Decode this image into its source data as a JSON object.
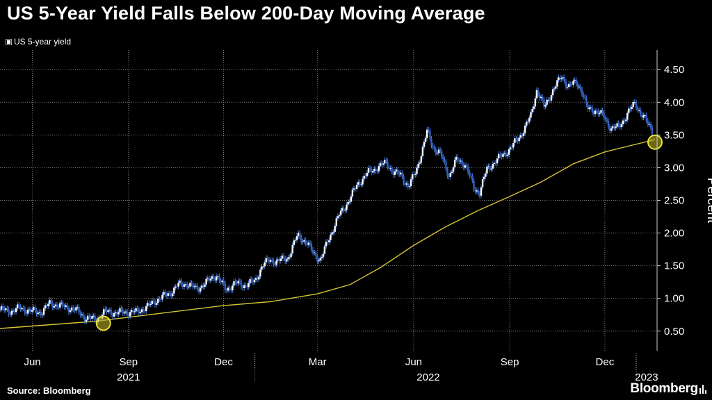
{
  "title": "US 5-Year Yield Falls Below 200-Day Moving Average",
  "legend_label": "US 5-year yield",
  "source": "Source: Bloomberg",
  "brand": "Bloomberg",
  "colors": {
    "background": "#000000",
    "yield_series": "#ffffff",
    "moving_average": "#d4c534",
    "highlight": "#e8e03a",
    "grid": "#7a7a7a"
  },
  "chart_data": {
    "type": "line",
    "ylabel": "Percent",
    "ylim": [
      0.2,
      4.8
    ],
    "y_ticks": [
      0.5,
      1.0,
      1.5,
      2.0,
      2.5,
      3.0,
      3.5,
      4.0,
      4.5
    ],
    "y_tick_labels": [
      "0.50",
      "1.00",
      "1.50",
      "2.00",
      "2.50",
      "3.00",
      "3.50",
      "4.00",
      "4.50"
    ],
    "x_tick_labels": [
      "Jun",
      "Sep",
      "Dec",
      "Mar",
      "Jun",
      "Sep",
      "Dec"
    ],
    "x_tick_dates": [
      "2021-06-01",
      "2021-09-01",
      "2021-12-01",
      "2022-03-01",
      "2022-06-01",
      "2022-09-01",
      "2022-12-01"
    ],
    "year_labels": [
      "2021",
      "2022",
      "2023"
    ],
    "year_label_dates": [
      "2021-09-01",
      "2022-06-15",
      "2023-01-10"
    ],
    "year_boundaries": [
      "2021-12-31",
      "2022-12-31"
    ],
    "xlim": [
      "2021-05-01",
      "2023-01-20"
    ],
    "grid": true,
    "legend_position": "top-left",
    "series": [
      {
        "name": "US 5-year yield",
        "style": "candlestick-like line",
        "points": [
          [
            "2021-05-01",
            0.83
          ],
          [
            "2021-05-10",
            0.8
          ],
          [
            "2021-05-20",
            0.85
          ],
          [
            "2021-06-01",
            0.8
          ],
          [
            "2021-06-10",
            0.79
          ],
          [
            "2021-06-18",
            0.93
          ],
          [
            "2021-06-28",
            0.88
          ],
          [
            "2021-07-06",
            0.86
          ],
          [
            "2021-07-15",
            0.8
          ],
          [
            "2021-07-22",
            0.7
          ],
          [
            "2021-08-01",
            0.68
          ],
          [
            "2021-08-10",
            0.8
          ],
          [
            "2021-08-20",
            0.78
          ],
          [
            "2021-08-28",
            0.79
          ],
          [
            "2021-09-08",
            0.79
          ],
          [
            "2021-09-20",
            0.88
          ],
          [
            "2021-09-29",
            0.99
          ],
          [
            "2021-10-10",
            1.07
          ],
          [
            "2021-10-18",
            1.2
          ],
          [
            "2021-10-27",
            1.23
          ],
          [
            "2021-11-05",
            1.14
          ],
          [
            "2021-11-15",
            1.25
          ],
          [
            "2021-11-24",
            1.36
          ],
          [
            "2021-12-03",
            1.13
          ],
          [
            "2021-12-12",
            1.23
          ],
          [
            "2021-12-20",
            1.2
          ],
          [
            "2021-12-31",
            1.26
          ],
          [
            "2022-01-07",
            1.5
          ],
          [
            "2022-01-14",
            1.59
          ],
          [
            "2022-01-21",
            1.56
          ],
          [
            "2022-02-01",
            1.63
          ],
          [
            "2022-02-10",
            1.97
          ],
          [
            "2022-02-18",
            1.86
          ],
          [
            "2022-02-25",
            1.7
          ],
          [
            "2022-03-04",
            1.58
          ],
          [
            "2022-03-11",
            1.89
          ],
          [
            "2022-03-21",
            2.25
          ],
          [
            "2022-03-31",
            2.5
          ],
          [
            "2022-04-08",
            2.74
          ],
          [
            "2022-04-18",
            2.92
          ],
          [
            "2022-04-28",
            3.01
          ],
          [
            "2022-05-06",
            3.08
          ],
          [
            "2022-05-13",
            2.92
          ],
          [
            "2022-05-20",
            2.89
          ],
          [
            "2022-05-27",
            2.7
          ],
          [
            "2022-06-03",
            2.94
          ],
          [
            "2022-06-10",
            3.31
          ],
          [
            "2022-06-14",
            3.56
          ],
          [
            "2022-06-20",
            3.3
          ],
          [
            "2022-06-27",
            3.2
          ],
          [
            "2022-07-05",
            2.87
          ],
          [
            "2022-07-12",
            3.12
          ],
          [
            "2022-07-20",
            3.06
          ],
          [
            "2022-07-29",
            2.68
          ],
          [
            "2022-08-03",
            2.62
          ],
          [
            "2022-08-10",
            2.97
          ],
          [
            "2022-08-19",
            3.11
          ],
          [
            "2022-08-26",
            3.2
          ],
          [
            "2022-09-02",
            3.3
          ],
          [
            "2022-09-12",
            3.51
          ],
          [
            "2022-09-21",
            3.78
          ],
          [
            "2022-09-27",
            4.2
          ],
          [
            "2022-10-04",
            3.92
          ],
          [
            "2022-10-12",
            4.18
          ],
          [
            "2022-10-21",
            4.4
          ],
          [
            "2022-10-27",
            4.24
          ],
          [
            "2022-11-04",
            4.31
          ],
          [
            "2022-11-09",
            4.18
          ],
          [
            "2022-11-14",
            3.9
          ],
          [
            "2022-11-22",
            3.88
          ],
          [
            "2022-11-30",
            3.78
          ],
          [
            "2022-12-07",
            3.6
          ],
          [
            "2022-12-14",
            3.62
          ],
          [
            "2022-12-21",
            3.78
          ],
          [
            "2022-12-30",
            4.0
          ],
          [
            "2023-01-05",
            3.81
          ],
          [
            "2023-01-10",
            3.7
          ],
          [
            "2023-01-16",
            3.57
          ]
        ]
      },
      {
        "name": "200-day moving average",
        "style": "line",
        "points": [
          [
            "2021-05-01",
            0.54
          ],
          [
            "2021-08-01",
            0.65
          ],
          [
            "2021-10-01",
            0.77
          ],
          [
            "2021-12-01",
            0.89
          ],
          [
            "2022-01-15",
            0.95
          ],
          [
            "2022-03-01",
            1.07
          ],
          [
            "2022-04-01",
            1.21
          ],
          [
            "2022-05-01",
            1.48
          ],
          [
            "2022-06-01",
            1.81
          ],
          [
            "2022-07-01",
            2.09
          ],
          [
            "2022-08-01",
            2.34
          ],
          [
            "2022-09-01",
            2.56
          ],
          [
            "2022-10-01",
            2.78
          ],
          [
            "2022-11-01",
            3.06
          ],
          [
            "2022-12-01",
            3.24
          ],
          [
            "2023-01-18",
            3.43
          ]
        ]
      }
    ],
    "highlights": [
      {
        "label": "crossover",
        "date": "2021-08-08",
        "value": 0.62
      },
      {
        "label": "crossover",
        "date": "2023-01-18",
        "value": 3.39
      }
    ]
  }
}
